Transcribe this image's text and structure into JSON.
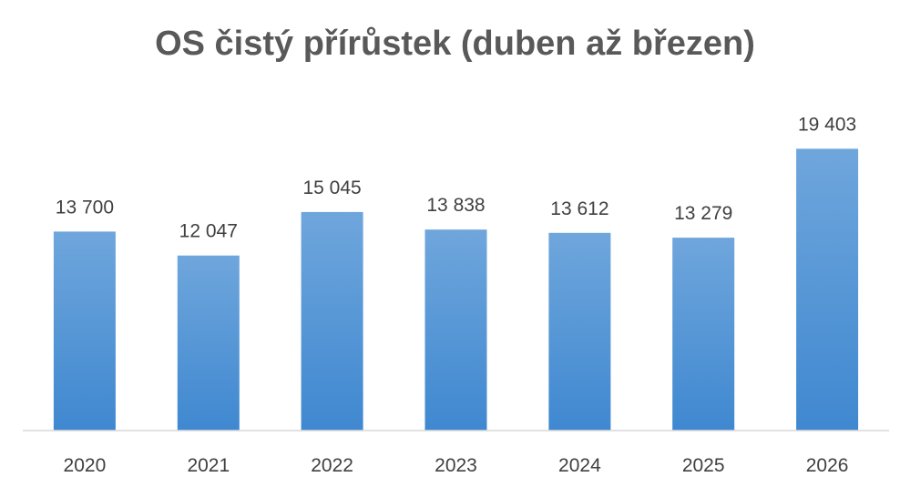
{
  "chart_data": {
    "type": "bar",
    "title": "OS čistý přírůstek (duben až březen)",
    "xlabel": "",
    "ylabel": "",
    "categories": [
      "2020",
      "2021",
      "2022",
      "2023",
      "2024",
      "2025",
      "2026"
    ],
    "values": [
      13700,
      12047,
      15045,
      13838,
      13612,
      13279,
      19403
    ],
    "data_labels": [
      "13 700",
      "12 047",
      "15 045",
      "13 838",
      "13 612",
      "13 279",
      "19 403"
    ],
    "ylim": [
      0,
      24000
    ],
    "grid": false,
    "legend": "none",
    "colors": {
      "bar_top": "#6fa6dc",
      "bar_bottom": "#3f88d0",
      "axis_line": "#d9d9d9",
      "title": "#595959",
      "text": "#404040"
    }
  }
}
